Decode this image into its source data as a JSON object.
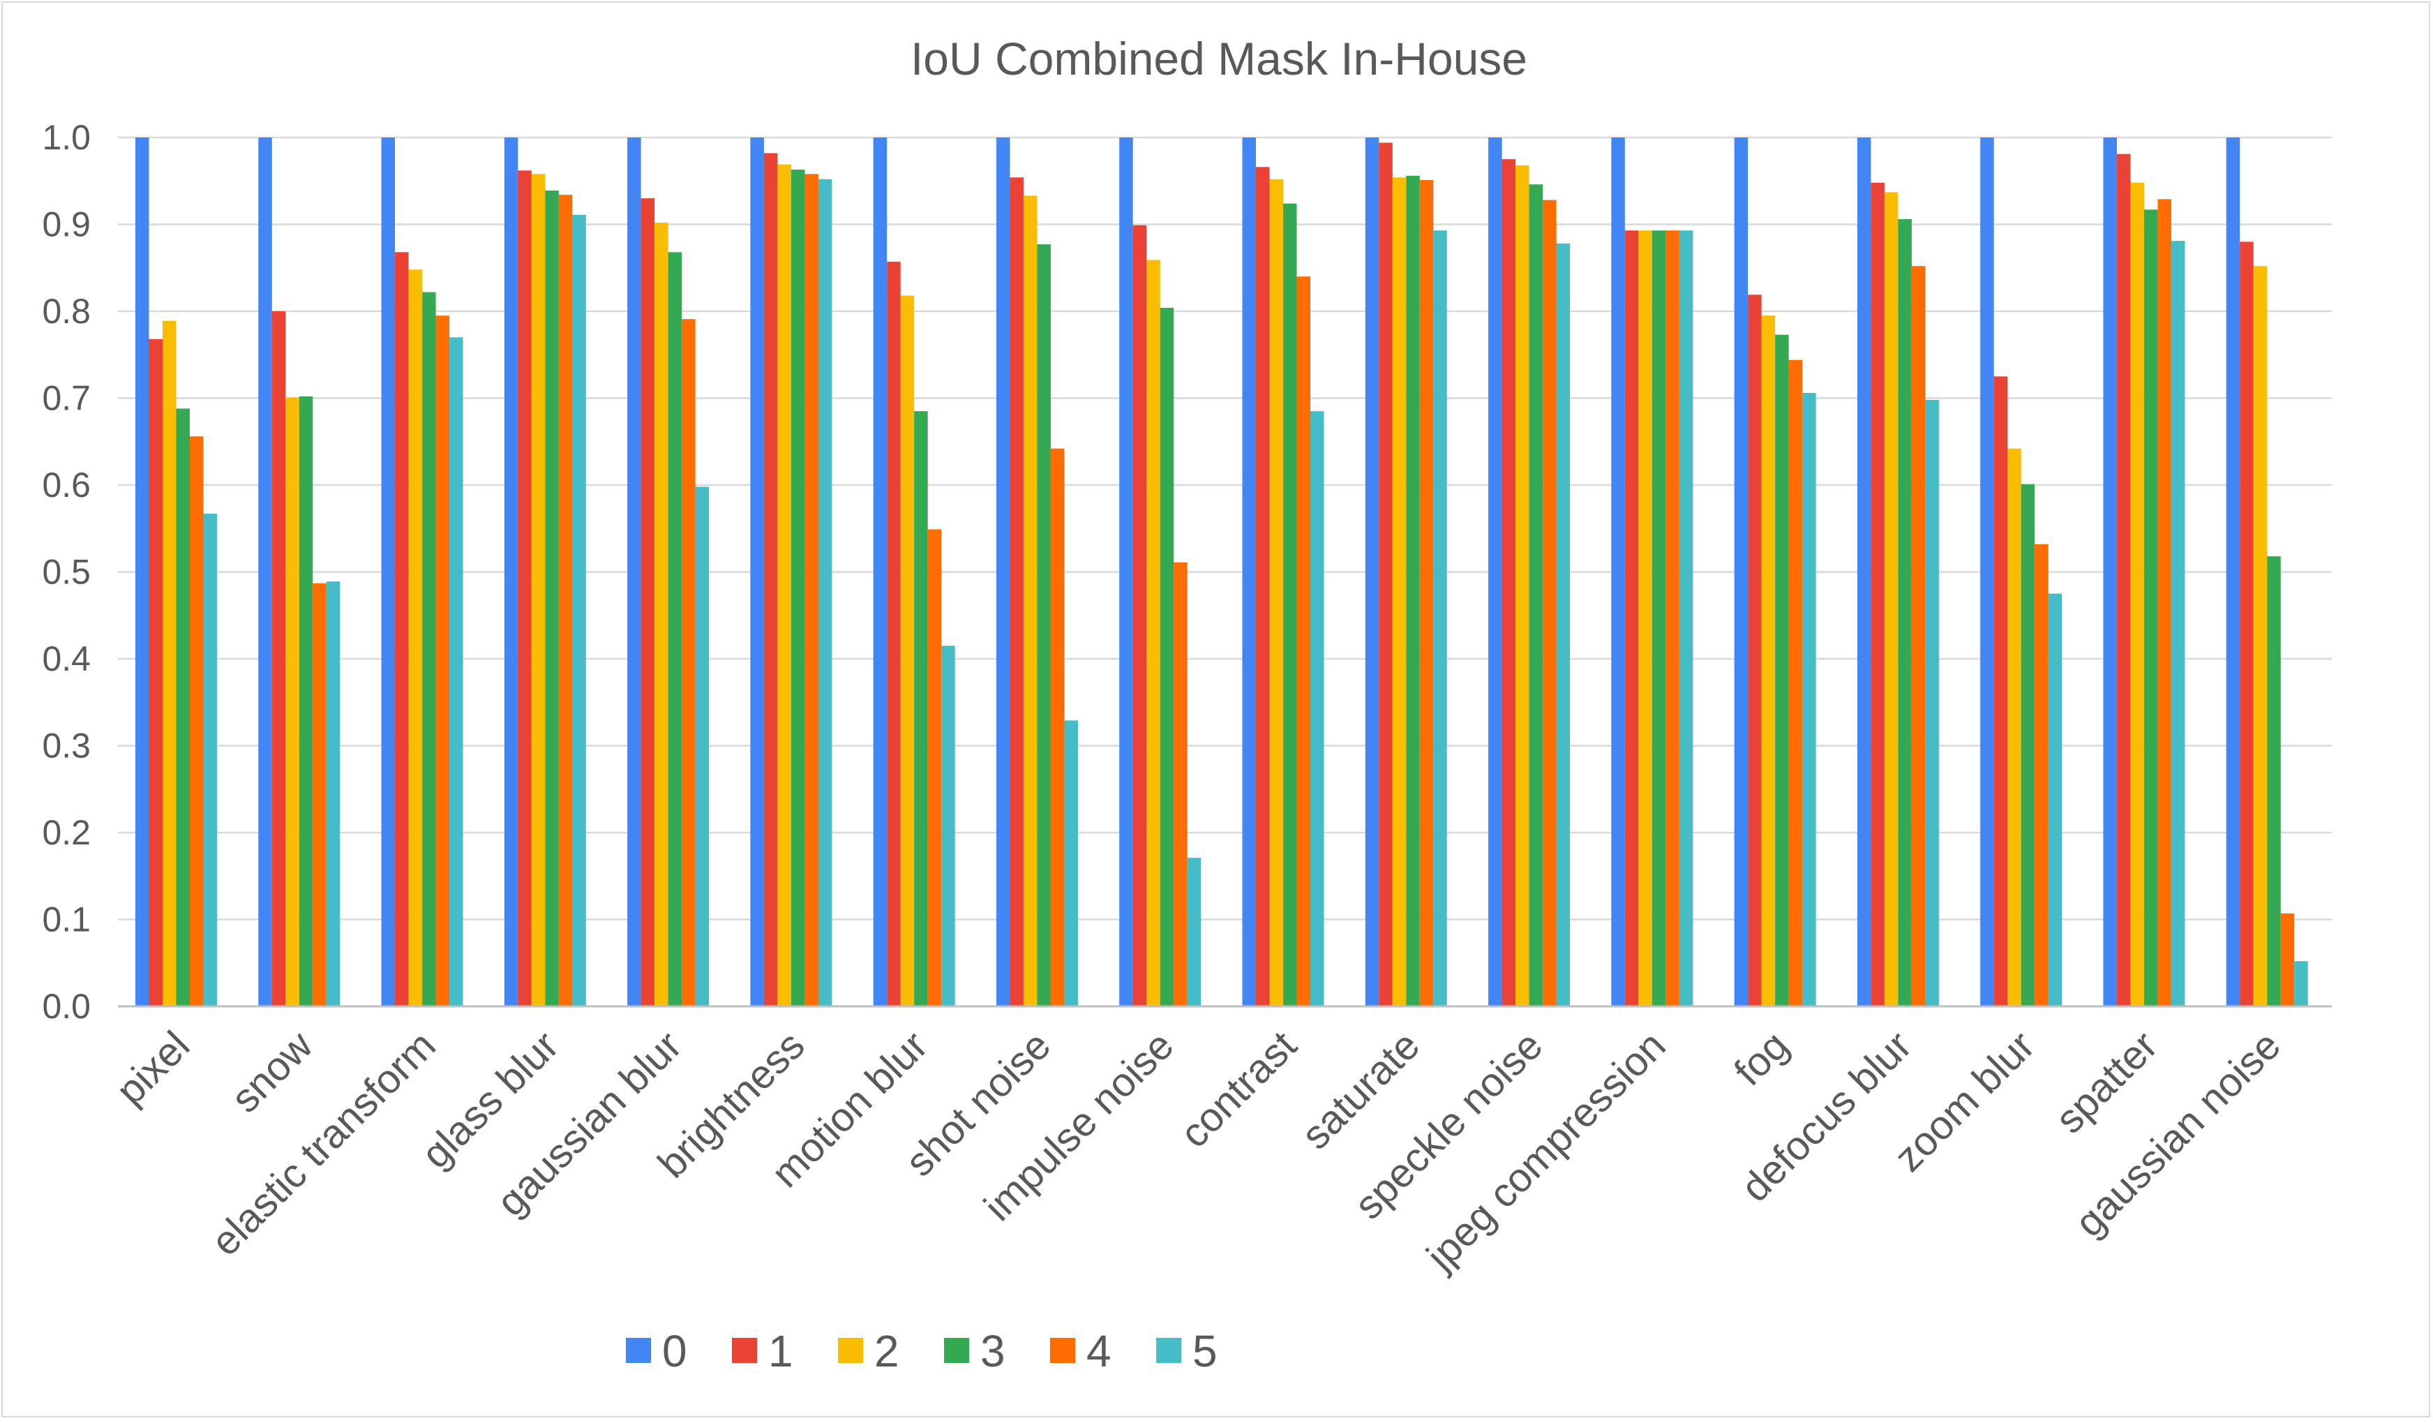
{
  "chart_data": {
    "type": "bar",
    "title": "IoU  Combined Mask In-House",
    "xlabel": "",
    "ylabel": "",
    "ylim": [
      0,
      1.0
    ],
    "yticks": [
      "0.0",
      "0.1",
      "0.2",
      "0.3",
      "0.4",
      "0.5",
      "0.6",
      "0.7",
      "0.8",
      "0.9",
      "1.0"
    ],
    "grid": true,
    "legend_position": "bottom",
    "categories": [
      "pixel",
      "snow",
      "elastic  transform",
      "glass  blur",
      "gaussian blur",
      "brightness",
      "motion blur",
      "shot noise",
      "impulse noise",
      "contrast",
      "saturate",
      "speckle noise",
      "jpeg compression",
      "fog",
      "defocus blur",
      "zoom blur",
      "spatter",
      "gaussian noise"
    ],
    "series": [
      {
        "name": "0",
        "color": "#4285f4",
        "values": [
          1.0,
          1.0,
          1.0,
          1.0,
          1.0,
          1.0,
          1.0,
          1.0,
          1.0,
          1.0,
          1.0,
          1.0,
          1.0,
          1.0,
          1.0,
          1.0,
          1.0,
          1.0
        ]
      },
      {
        "name": "1",
        "color": "#ea4335",
        "values": [
          0.768,
          0.8,
          0.868,
          0.962,
          0.93,
          0.982,
          0.857,
          0.954,
          0.899,
          0.966,
          0.994,
          0.975,
          0.893,
          0.819,
          0.948,
          0.725,
          0.981,
          0.88
        ]
      },
      {
        "name": "2",
        "color": "#fbbc04",
        "values": [
          0.789,
          0.701,
          0.848,
          0.958,
          0.902,
          0.969,
          0.818,
          0.933,
          0.859,
          0.952,
          0.954,
          0.968,
          0.893,
          0.795,
          0.937,
          0.642,
          0.948,
          0.852
        ]
      },
      {
        "name": "3",
        "color": "#34a853",
        "values": [
          0.688,
          0.702,
          0.822,
          0.939,
          0.868,
          0.963,
          0.685,
          0.877,
          0.804,
          0.924,
          0.956,
          0.946,
          0.893,
          0.773,
          0.906,
          0.601,
          0.917,
          0.518
        ]
      },
      {
        "name": "4",
        "color": "#ff6d01",
        "values": [
          0.656,
          0.487,
          0.795,
          0.934,
          0.791,
          0.958,
          0.549,
          0.642,
          0.511,
          0.84,
          0.951,
          0.928,
          0.893,
          0.744,
          0.852,
          0.532,
          0.929,
          0.107
        ]
      },
      {
        "name": "5",
        "color": "#46bdc6",
        "values": [
          0.567,
          0.489,
          0.77,
          0.911,
          0.598,
          0.952,
          0.415,
          0.329,
          0.171,
          0.685,
          0.893,
          0.878,
          0.893,
          0.706,
          0.698,
          0.475,
          0.881,
          0.052
        ]
      }
    ]
  }
}
